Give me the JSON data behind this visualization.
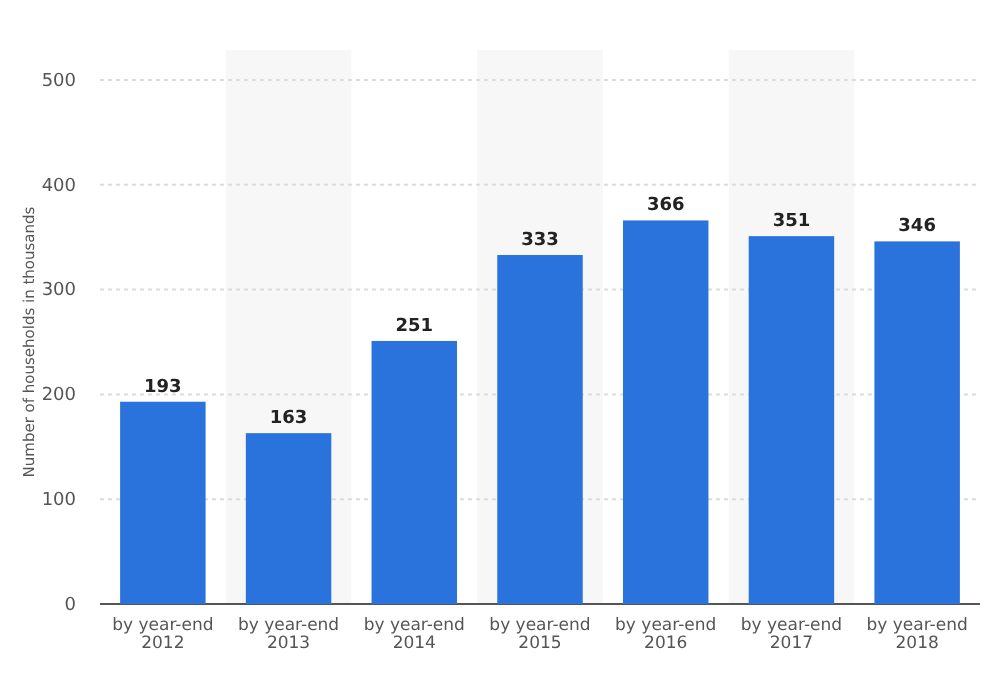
{
  "chart_data": {
    "type": "bar",
    "ylabel": "Number of households in thousands",
    "categories": [
      "by year-end 2012",
      "by year-end 2013",
      "by year-end 2014",
      "by year-end 2015",
      "by year-end 2016",
      "by year-end 2017",
      "by year-end 2018"
    ],
    "values": [
      193,
      163,
      251,
      333,
      366,
      351,
      346
    ],
    "color": "#2a72dc",
    "ylim": [
      0,
      500
    ],
    "yticks": [
      0,
      100,
      200,
      300,
      400,
      500
    ],
    "grid": "y",
    "data_labels": true
  }
}
